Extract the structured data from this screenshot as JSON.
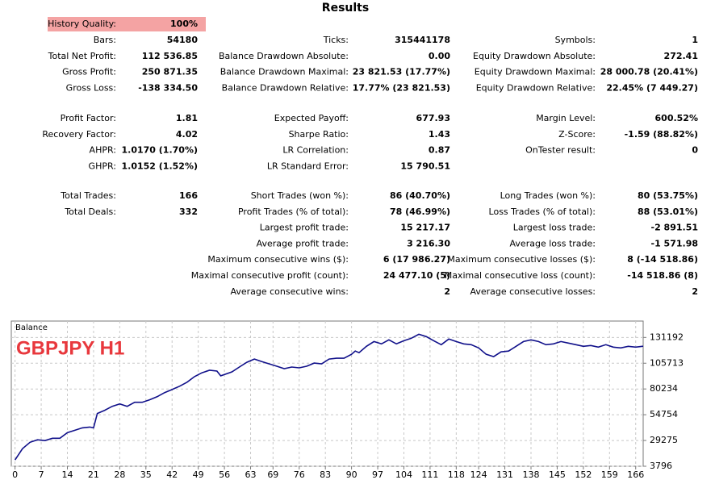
{
  "results": {
    "title": "Results",
    "history_quality": {
      "label": "History Quality:",
      "value": "100%"
    },
    "groups": [
      [
        [
          [
            "Bars:",
            "54180"
          ],
          [
            "Ticks:",
            "315441178"
          ],
          [
            "Symbols:",
            "1"
          ]
        ],
        [
          [
            "Total Net Profit:",
            "112 536.85"
          ],
          [
            "Balance Drawdown Absolute:",
            "0.00"
          ],
          [
            "Equity Drawdown Absolute:",
            "272.41"
          ]
        ],
        [
          [
            "Gross Profit:",
            "250 871.35"
          ],
          [
            "Balance Drawdown Maximal:",
            "23 821.53 (17.77%)"
          ],
          [
            "Equity Drawdown Maximal:",
            "28 000.78 (20.41%)"
          ]
        ],
        [
          [
            "Gross Loss:",
            "-138 334.50"
          ],
          [
            "Balance Drawdown Relative:",
            "17.77% (23 821.53)"
          ],
          [
            "Equity Drawdown Relative:",
            "22.45% (7 449.27)"
          ]
        ]
      ],
      [
        [
          [
            "Profit Factor:",
            "1.81"
          ],
          [
            "Expected Payoff:",
            "677.93"
          ],
          [
            "Margin Level:",
            "600.52%"
          ]
        ],
        [
          [
            "Recovery Factor:",
            "4.02"
          ],
          [
            "Sharpe Ratio:",
            "1.43"
          ],
          [
            "Z-Score:",
            "-1.59 (88.82%)"
          ]
        ],
        [
          [
            "AHPR:",
            "1.0170 (1.70%)"
          ],
          [
            "LR Correlation:",
            "0.87"
          ],
          [
            "OnTester result:",
            "0"
          ]
        ],
        [
          [
            "GHPR:",
            "1.0152 (1.52%)"
          ],
          [
            "LR Standard Error:",
            "15 790.51"
          ],
          null
        ]
      ],
      [
        [
          [
            "Total Trades:",
            "166"
          ],
          [
            "Short Trades (won %):",
            "86 (40.70%)"
          ],
          [
            "Long Trades (won %):",
            "80 (53.75%)"
          ]
        ],
        [
          [
            "Total Deals:",
            "332"
          ],
          [
            "Profit Trades (% of total):",
            "78 (46.99%)"
          ],
          [
            "Loss Trades (% of total):",
            "88 (53.01%)"
          ]
        ],
        [
          null,
          [
            "Largest profit trade:",
            "15 217.17"
          ],
          [
            "Largest loss trade:",
            "-2 891.51"
          ]
        ],
        [
          null,
          [
            "Average profit trade:",
            "3 216.30"
          ],
          [
            "Average loss trade:",
            "-1 571.98"
          ]
        ],
        [
          null,
          [
            "Maximum consecutive wins ($):",
            "6 (17 986.27)"
          ],
          [
            "Maximum consecutive losses ($):",
            "8 (-14 518.86)"
          ]
        ],
        [
          null,
          [
            "Maximal consecutive profit (count):",
            "24 477.10 (5)"
          ],
          [
            "Maximal consecutive loss (count):",
            "-14 518.86 (8)"
          ]
        ],
        [
          null,
          [
            "Average consecutive wins:",
            "2"
          ],
          [
            "Average consecutive losses:",
            "2"
          ]
        ]
      ]
    ]
  },
  "chart_data": {
    "type": "line",
    "annotation": "GBPJPY H1",
    "annotation_color": "#e8383d",
    "x": [
      0,
      2,
      4,
      6,
      8,
      10,
      12,
      14,
      16,
      18,
      20,
      21,
      22,
      24,
      26,
      28,
      30,
      32,
      34,
      36,
      38,
      40,
      42,
      44,
      46,
      48,
      50,
      52,
      54,
      55,
      58,
      60,
      62,
      64,
      66,
      68,
      70,
      72,
      74,
      76,
      78,
      80,
      82,
      84,
      86,
      88,
      90,
      91,
      92,
      94,
      96,
      98,
      100,
      102,
      104,
      106,
      108,
      110,
      112,
      114,
      116,
      118,
      120,
      122,
      124,
      126,
      128,
      130,
      132,
      134,
      136,
      138,
      140,
      142,
      144,
      146,
      148,
      150,
      152,
      154,
      156,
      158,
      160,
      162,
      164,
      166,
      168
    ],
    "series": [
      {
        "name": "Balance",
        "color": "#10108a",
        "values": [
          10000,
          21200,
          27500,
          30000,
          29200,
          31500,
          31500,
          37000,
          39400,
          41800,
          42600,
          41800,
          56000,
          59200,
          63100,
          65500,
          63100,
          67100,
          67100,
          69500,
          72600,
          76600,
          79700,
          82900,
          86900,
          92400,
          96300,
          98700,
          97900,
          93200,
          97100,
          101900,
          106600,
          109800,
          107300,
          105000,
          102700,
          100300,
          101900,
          101100,
          102700,
          105800,
          105000,
          109800,
          110600,
          110600,
          114500,
          117700,
          116100,
          122400,
          127100,
          124800,
          128800,
          124800,
          127900,
          130400,
          134300,
          132000,
          127900,
          124000,
          129600,
          127100,
          124800,
          124000,
          120800,
          114500,
          112200,
          116900,
          117700,
          122400,
          127100,
          128800,
          127100,
          124000,
          124800,
          127100,
          125600,
          124000,
          122400,
          123200,
          121600,
          124000,
          121600,
          120800,
          122400,
          121600,
          122537
        ]
      }
    ],
    "xlim": [
      -1,
      168
    ],
    "xticks": [
      0,
      7,
      14,
      21,
      28,
      35,
      42,
      49,
      56,
      63,
      69,
      76,
      83,
      90,
      97,
      104,
      111,
      118,
      124,
      131,
      138,
      145,
      152,
      159,
      166
    ],
    "ylim": [
      3796,
      147400
    ],
    "yticks": [
      3796,
      29275,
      54754,
      80234,
      105713,
      131192
    ],
    "grid": true
  }
}
